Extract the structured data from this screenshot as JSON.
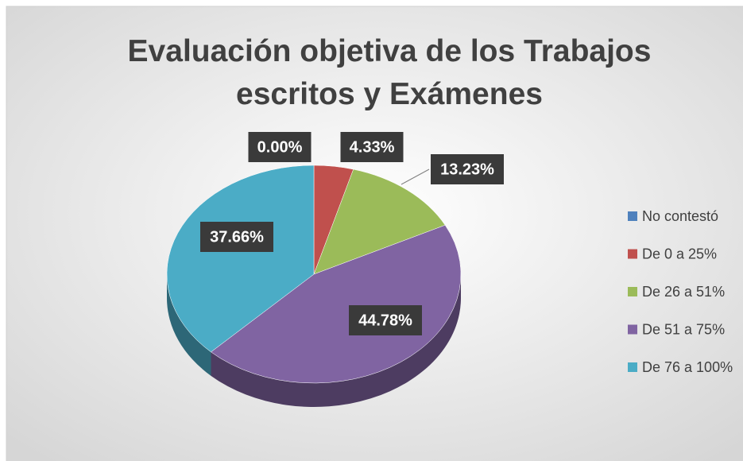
{
  "chart_data": {
    "type": "pie",
    "title": "Evaluación objetiva de los Trabajos escritos y Exámenes",
    "categories": [
      "No contestó",
      "De 0 a 25%",
      "De 26 a 51%",
      "De 51 a 75%",
      "De 76 a 100%"
    ],
    "values": [
      0,
      4.33,
      13.23,
      44.78,
      37.66
    ],
    "value_labels": [
      "0.00%",
      "4.33%",
      "13.23%",
      "44.78%",
      "37.66%"
    ],
    "colors": [
      "#4f81bd",
      "#c0504d",
      "#9bbb59",
      "#8064a2",
      "#4bacc6"
    ],
    "legend": "right"
  }
}
